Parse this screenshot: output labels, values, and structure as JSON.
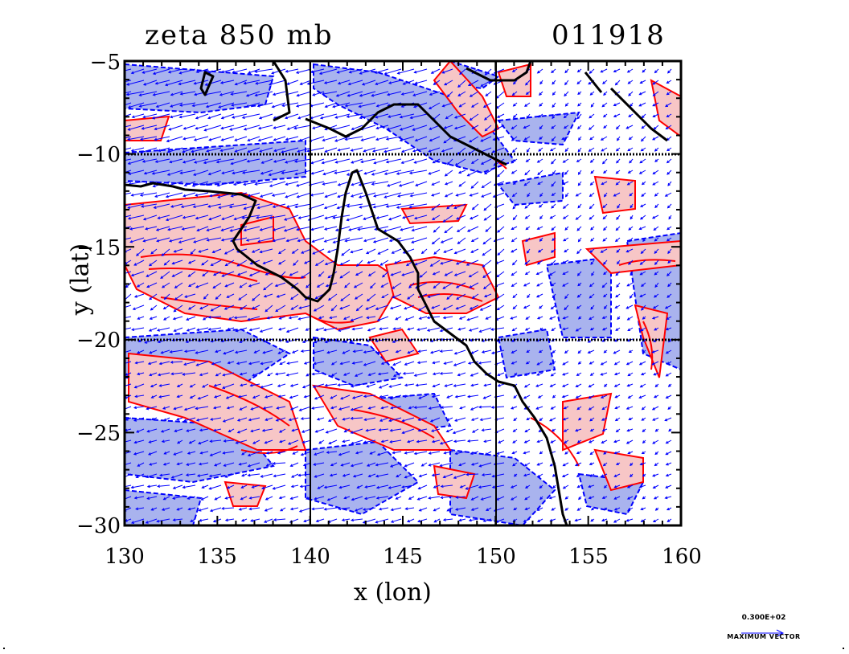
{
  "header": {
    "title_left": "zeta 850 mb",
    "title_right": "011918"
  },
  "axes": {
    "xlabel": "x (lon)",
    "ylabel": "y (lat)",
    "xticks": [
      "130",
      "135",
      "140",
      "145",
      "150",
      "155",
      "160"
    ],
    "yticks": [
      "−5",
      "−10",
      "−15",
      "−20",
      "−25",
      "−30"
    ],
    "xlim": [
      130,
      160
    ],
    "ylim": [
      -30,
      -5
    ]
  },
  "legend": {
    "vector_value": "0.300E+02",
    "vector_caption": "MAXIMUM VECTOR"
  },
  "colors": {
    "positive_fill": "#f7c6c6",
    "positive_contour": "#ff0000",
    "negative_fill": "#a9b3ee",
    "negative_contour": "#0000ff",
    "coastline": "#000000",
    "vectors": "#0000ff"
  },
  "map": {
    "grid_lines_lon": [
      140,
      150
    ],
    "grid_lines_lat": [
      -10,
      -20
    ]
  }
}
